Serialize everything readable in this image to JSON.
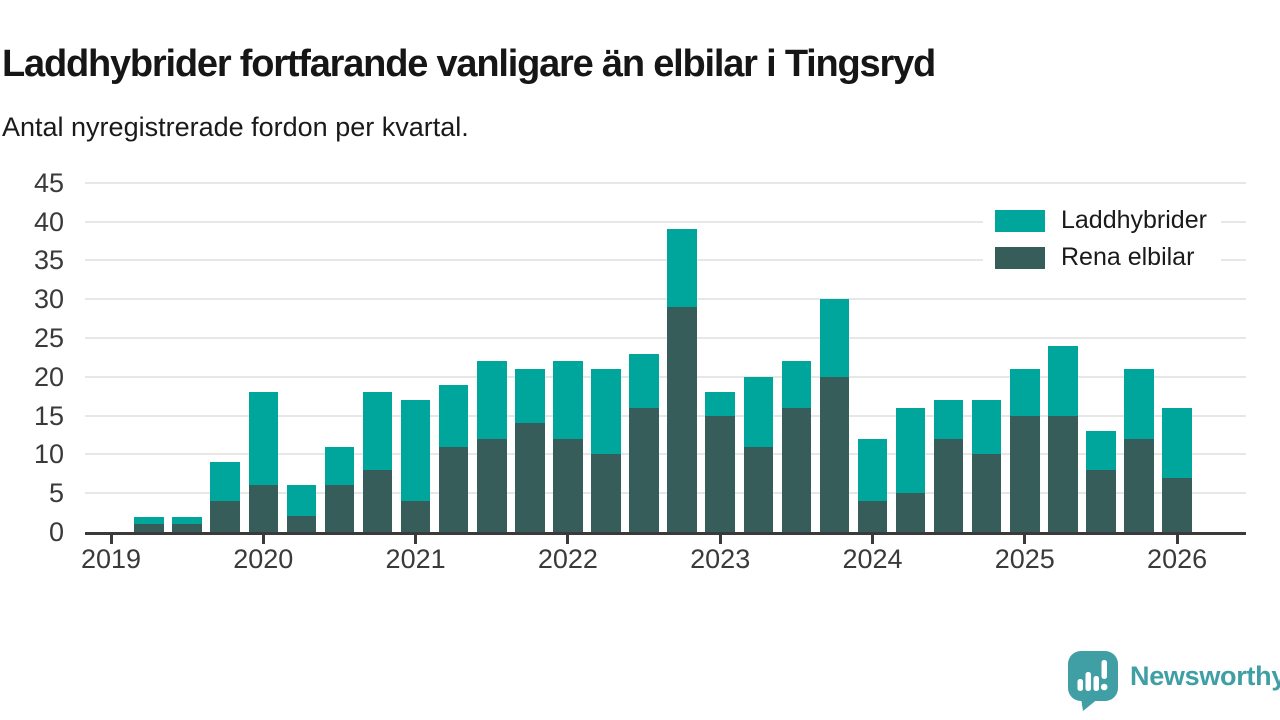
{
  "header": {
    "title": "Laddhybrider fortfarande vanligare än elbilar i Tingsryd",
    "subtitle": "Antal nyregistrerade fordon per kvartal."
  },
  "chart_data": {
    "type": "bar",
    "stacked": true,
    "title": "Laddhybrider fortfarande vanligare än elbilar i Tingsryd",
    "subtitle": "Antal nyregistrerade fordon per kvartal.",
    "xlabel": "",
    "ylabel": "",
    "categories": [
      "2019 Q2",
      "2019 Q3",
      "2019 Q4",
      "2020 Q1",
      "2020 Q2",
      "2020 Q3",
      "2020 Q4",
      "2021 Q1",
      "2021 Q2",
      "2021 Q3",
      "2021 Q4",
      "2022 Q1",
      "2022 Q2",
      "2022 Q3",
      "2022 Q4",
      "2023 Q1",
      "2023 Q2",
      "2023 Q3",
      "2023 Q4",
      "2024 Q1",
      "2024 Q2",
      "2024 Q3",
      "2024 Q4",
      "2025 Q1",
      "2025 Q2",
      "2025 Q3",
      "2025 Q4",
      "2026 Q1"
    ],
    "series": [
      {
        "name": "Laddhybrider",
        "color": "#00a59b",
        "values": [
          1,
          1,
          5,
          12,
          4,
          5,
          10,
          13,
          8,
          10,
          7,
          10,
          11,
          7,
          10,
          3,
          9,
          6,
          10,
          8,
          11,
          5,
          7,
          6,
          9,
          5,
          9,
          9
        ]
      },
      {
        "name": "Rena elbilar",
        "color": "#365d59",
        "values": [
          1,
          1,
          4,
          6,
          2,
          6,
          8,
          4,
          11,
          12,
          14,
          12,
          10,
          16,
          29,
          15,
          11,
          16,
          20,
          4,
          5,
          12,
          10,
          15,
          15,
          8,
          12,
          7
        ]
      }
    ],
    "stack_order": [
      "Rena elbilar",
      "Laddhybrider"
    ],
    "ylim": [
      0,
      45
    ],
    "yticks": [
      0,
      5,
      10,
      15,
      20,
      25,
      30,
      35,
      40,
      45
    ],
    "xticks": [
      "2019",
      "2020",
      "2021",
      "2022",
      "2023",
      "2024",
      "2025",
      "2026"
    ],
    "grid": "horizontal",
    "legend_position": "top-right",
    "colors": {
      "laddhybrider": "#00a59b",
      "rena_elbilar": "#365d59",
      "gridline": "#e7e7e7",
      "axis": "#3a3a3a",
      "brand": "#3f9fa4"
    }
  },
  "footer": {
    "brand": "Newsworthy",
    "logo_icon": "newsworthy-speech-bubble-bar-chart-icon"
  }
}
